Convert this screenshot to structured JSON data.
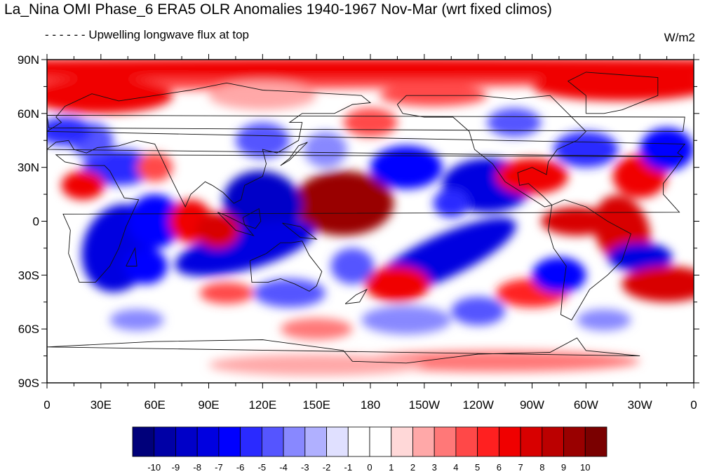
{
  "title": "La_Nina OMI Phase_6 ERA5 OLR Anomalies 1940-1967 Nov-Mar (wrt fixed climos)",
  "subtitle": "Upwelling longwave flux at top",
  "units": "W/m2",
  "map": {
    "projection": "cylindrical equidistant",
    "lon_range": [
      0,
      360
    ],
    "lat_range": [
      -90,
      90
    ],
    "lat_ticks": [
      "90N",
      "60N",
      "30N",
      "0",
      "30S",
      "60S",
      "90S"
    ],
    "lon_ticks": [
      "0",
      "30E",
      "60E",
      "90E",
      "120E",
      "150E",
      "180",
      "150W",
      "120W",
      "90W",
      "60W",
      "30W",
      "0"
    ],
    "field": "OLR anomaly",
    "color_levels": [
      "-10",
      "-9",
      "-8",
      "-7",
      "-6",
      "-5",
      "-4",
      "-3",
      "-2",
      "-1",
      "0",
      "1",
      "2",
      "3",
      "4",
      "5",
      "6",
      "7",
      "8",
      "9",
      "10"
    ],
    "colormap": [
      "#00007a",
      "#0000a6",
      "#0000c8",
      "#0000e0",
      "#0000ff",
      "#2a2aff",
      "#5555ff",
      "#8888ff",
      "#b0b0ff",
      "#e0e0ff",
      "#ffffff",
      "#ffffff",
      "#ffd8d8",
      "#ffa8a8",
      "#ff7878",
      "#ff4848",
      "#ff2020",
      "#f00000",
      "#d80000",
      "#bb0000",
      "#990000",
      "#7a0000"
    ]
  }
}
